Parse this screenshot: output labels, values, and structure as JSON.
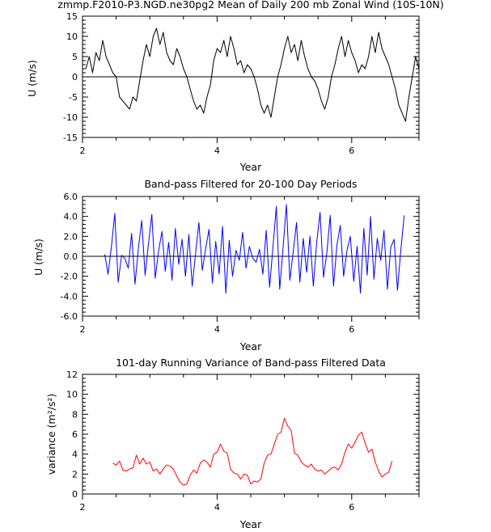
{
  "chart_data": [
    {
      "type": "line",
      "title": "zmmp.F2010-P3.NGD.ne30pg2 Mean of Daily 200 mb Zonal Wind (10S-10N)",
      "xlabel": "Year",
      "ylabel": "U (m/s)",
      "xlim": [
        2,
        7
      ],
      "ylim": [
        -15,
        15
      ],
      "xticks": [
        2,
        4,
        6
      ],
      "xtick_labels": [
        "2",
        "4",
        "6"
      ],
      "yticks": [
        -15,
        -10,
        -5,
        0,
        5,
        10,
        15
      ],
      "ytick_labels": [
        "-15",
        "-10",
        "-5",
        "0",
        "5",
        "10",
        "15"
      ],
      "zero_line": true,
      "series": [
        {
          "name": "daily zonal wind",
          "color": "#000000",
          "x": [
            2.05,
            2.1,
            2.15,
            2.2,
            2.25,
            2.3,
            2.35,
            2.4,
            2.45,
            2.5,
            2.55,
            2.6,
            2.65,
            2.7,
            2.75,
            2.8,
            2.85,
            2.9,
            2.95,
            3.0,
            3.05,
            3.1,
            3.15,
            3.2,
            3.25,
            3.3,
            3.35,
            3.4,
            3.45,
            3.5,
            3.55,
            3.6,
            3.65,
            3.7,
            3.75,
            3.8,
            3.85,
            3.9,
            3.95,
            4.0,
            4.05,
            4.1,
            4.15,
            4.2,
            4.25,
            4.3,
            4.35,
            4.4,
            4.45,
            4.5,
            4.55,
            4.6,
            4.65,
            4.7,
            4.75,
            4.8,
            4.85,
            4.9,
            4.95,
            5.0,
            5.05,
            5.1,
            5.15,
            5.2,
            5.25,
            5.3,
            5.35,
            5.4,
            5.45,
            5.5,
            5.55,
            5.6,
            5.65,
            5.7,
            5.75,
            5.8,
            5.85,
            5.9,
            5.95,
            6.0,
            6.05,
            6.1,
            6.15,
            6.2,
            6.25,
            6.3,
            6.35,
            6.4,
            6.45,
            6.5,
            6.55,
            6.6,
            6.65,
            6.7,
            6.75,
            6.8,
            6.85,
            6.9,
            6.95,
            7.0
          ],
          "y": [
            2,
            5,
            1,
            6,
            4,
            9,
            5,
            3,
            1,
            0,
            -5,
            -6,
            -7,
            -8,
            -5,
            -6,
            -1,
            4,
            8,
            5,
            10,
            12,
            8,
            11,
            6,
            4,
            3,
            7,
            5,
            2,
            0,
            -3,
            -6,
            -8,
            -7,
            -9,
            -5,
            -2,
            4,
            7,
            6,
            9,
            5,
            10,
            7,
            3,
            4,
            1,
            3,
            2,
            0,
            -3,
            -7,
            -9,
            -7,
            -10,
            -5,
            0,
            3,
            7,
            10,
            6,
            8,
            4,
            9,
            5,
            2,
            0,
            -1,
            -3,
            -6,
            -8,
            -5,
            0,
            3,
            7,
            10,
            5,
            9,
            6,
            4,
            1,
            3,
            2,
            5,
            10,
            6,
            11,
            7,
            5,
            3,
            0,
            -3,
            -7,
            -9,
            -11,
            -5,
            0,
            5,
            2
          ]
        }
      ]
    },
    {
      "type": "line",
      "title": "Band-pass Filtered for 20-100 Day Periods",
      "xlabel": "Year",
      "ylabel": "U (m/s)",
      "xlim": [
        2,
        7
      ],
      "ylim": [
        -6,
        6
      ],
      "xticks": [
        2,
        4,
        6
      ],
      "xtick_labels": [
        "2",
        "4",
        "6"
      ],
      "yticks": [
        -6,
        -4,
        -2,
        0,
        2,
        4,
        6
      ],
      "ytick_labels": [
        "-6.0",
        "-4.0",
        "-2.0",
        "0.0",
        "2.0",
        "4.0",
        "6.0"
      ],
      "zero_line": true,
      "series": [
        {
          "name": "band-pass filtered",
          "color": "#0000ff",
          "x": [
            2.33,
            2.38,
            2.43,
            2.48,
            2.53,
            2.58,
            2.63,
            2.68,
            2.73,
            2.78,
            2.83,
            2.88,
            2.93,
            2.98,
            3.03,
            3.08,
            3.13,
            3.18,
            3.23,
            3.28,
            3.33,
            3.38,
            3.43,
            3.48,
            3.53,
            3.58,
            3.63,
            3.68,
            3.73,
            3.78,
            3.83,
            3.88,
            3.93,
            3.98,
            4.03,
            4.08,
            4.13,
            4.18,
            4.23,
            4.28,
            4.33,
            4.38,
            4.43,
            4.48,
            4.53,
            4.58,
            4.63,
            4.68,
            4.73,
            4.78,
            4.83,
            4.88,
            4.93,
            4.98,
            5.03,
            5.08,
            5.13,
            5.18,
            5.23,
            5.28,
            5.33,
            5.38,
            5.43,
            5.48,
            5.53,
            5.58,
            5.63,
            5.68,
            5.73,
            5.78,
            5.83,
            5.88,
            5.93,
            5.98,
            6.03,
            6.08,
            6.13,
            6.18,
            6.23,
            6.28,
            6.33,
            6.38,
            6.43,
            6.48,
            6.53,
            6.58,
            6.63,
            6.68,
            6.73,
            6.78
          ],
          "y": [
            0.2,
            -1.8,
            1.0,
            4.3,
            -2.6,
            0.1,
            -0.2,
            -1.2,
            2.3,
            -2.8,
            0.8,
            3.6,
            -1.9,
            1.2,
            4.2,
            -2.2,
            0.5,
            2.5,
            -1.5,
            1.4,
            -2.4,
            2.8,
            -0.8,
            1.7,
            -2.0,
            2.2,
            -3.0,
            0.3,
            3.4,
            -1.4,
            0.8,
            2.7,
            -2.7,
            1.5,
            -1.8,
            3.0,
            -3.7,
            1.6,
            -2.0,
            0.6,
            -0.4,
            2.4,
            -1.2,
            1.0,
            -0.2,
            -0.6,
            0.7,
            -1.8,
            2.6,
            -3.1,
            1.0,
            5.0,
            -3.3,
            0.8,
            5.2,
            -2.4,
            0.4,
            3.4,
            -2.6,
            1.8,
            -1.6,
            2.0,
            -3.0,
            1.4,
            4.4,
            -2.1,
            0.3,
            4.1,
            -3.0,
            1.1,
            3.1,
            -2.0,
            0.6,
            2.0,
            -2.5,
            1.0,
            -3.7,
            2.8,
            -1.9,
            4.0,
            -2.3,
            1.8,
            -0.4,
            2.6,
            -3.3,
            0.9,
            1.7,
            -3.4,
            0.6,
            4.1
          ]
        }
      ]
    },
    {
      "type": "line",
      "title": "101-day Running Variance of Band-pass Filtered Data",
      "xlabel": "Year",
      "ylabel": "variance (m²/s²)",
      "xlim": [
        2,
        7
      ],
      "ylim": [
        0,
        12
      ],
      "xticks": [
        2,
        4,
        6
      ],
      "xtick_labels": [
        "2",
        "4",
        "6"
      ],
      "yticks": [
        0,
        2,
        4,
        6,
        8,
        10,
        12
      ],
      "ytick_labels": [
        "0",
        "2",
        "4",
        "6",
        "8",
        "10",
        "12"
      ],
      "zero_line": false,
      "series": [
        {
          "name": "running variance",
          "color": "#ff0000",
          "x": [
            2.45,
            2.5,
            2.55,
            2.6,
            2.65,
            2.7,
            2.75,
            2.8,
            2.85,
            2.9,
            2.95,
            3.0,
            3.05,
            3.1,
            3.15,
            3.2,
            3.25,
            3.3,
            3.35,
            3.4,
            3.45,
            3.5,
            3.55,
            3.6,
            3.65,
            3.7,
            3.75,
            3.8,
            3.85,
            3.9,
            3.95,
            4.0,
            4.05,
            4.1,
            4.15,
            4.2,
            4.25,
            4.3,
            4.35,
            4.4,
            4.45,
            4.5,
            4.55,
            4.6,
            4.65,
            4.7,
            4.75,
            4.8,
            4.85,
            4.9,
            4.95,
            5.0,
            5.05,
            5.1,
            5.15,
            5.2,
            5.25,
            5.3,
            5.35,
            5.4,
            5.45,
            5.5,
            5.55,
            5.6,
            5.65,
            5.7,
            5.75,
            5.8,
            5.85,
            5.9,
            5.95,
            6.0,
            6.05,
            6.1,
            6.15,
            6.2,
            6.25,
            6.3,
            6.35,
            6.4,
            6.45,
            6.5,
            6.55,
            6.6
          ],
          "y": [
            3.1,
            2.9,
            3.3,
            2.4,
            2.3,
            2.5,
            2.6,
            3.9,
            3.0,
            3.6,
            3.0,
            3.2,
            2.3,
            2.5,
            2.0,
            2.5,
            2.9,
            2.8,
            2.5,
            1.8,
            1.2,
            0.9,
            1.0,
            1.9,
            2.4,
            2.1,
            3.1,
            3.4,
            3.2,
            2.7,
            4.0,
            4.2,
            5.0,
            4.3,
            4.1,
            2.5,
            2.1,
            2.0,
            1.5,
            2.0,
            1.9,
            1.0,
            1.3,
            1.2,
            1.5,
            3.1,
            3.9,
            4.0,
            5.0,
            6.0,
            6.2,
            7.6,
            6.8,
            6.4,
            4.1,
            3.9,
            3.2,
            2.9,
            2.7,
            3.0,
            2.5,
            2.3,
            2.4,
            2.0,
            2.3,
            2.6,
            2.7,
            2.4,
            3.0,
            4.2,
            5.0,
            4.6,
            5.2,
            5.9,
            6.2,
            5.1,
            4.2,
            4.5,
            3.2,
            2.3,
            1.7,
            2.0,
            2.2,
            3.3
          ]
        }
      ]
    }
  ]
}
